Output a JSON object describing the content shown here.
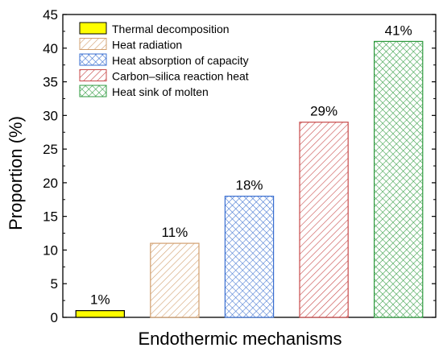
{
  "chart_data": {
    "type": "bar",
    "xlabel": "Endothermic mechanisms",
    "ylabel": "Proportion (%)",
    "ylim": [
      0,
      45
    ],
    "yticks": [
      0,
      5,
      10,
      15,
      20,
      25,
      30,
      35,
      40,
      45
    ],
    "legend_position": "top-left",
    "grid": false,
    "series": [
      {
        "name": "Thermal decomposition",
        "value": 1,
        "label": "1%",
        "fill": "solid",
        "color": "#ffff00",
        "edge": "#000000"
      },
      {
        "name": "Heat radiation",
        "value": 11,
        "label": "11%",
        "fill": "diagonal-hatch",
        "color": "#d2a070",
        "edge": "#d2a070"
      },
      {
        "name": "Heat absorption of capacity",
        "value": 18,
        "label": "18%",
        "fill": "cross-hatch",
        "color": "#3a6fd0",
        "edge": "#3a6fd0"
      },
      {
        "name": "Carbon–silica reaction heat",
        "value": 29,
        "label": "29%",
        "fill": "diagonal-hatch",
        "color": "#c84a4a",
        "edge": "#c84a4a"
      },
      {
        "name": "Heat sink of molten",
        "value": 41,
        "label": "41%",
        "fill": "cross-hatch",
        "color": "#2e9a3e",
        "edge": "#2e9a3e"
      }
    ]
  }
}
